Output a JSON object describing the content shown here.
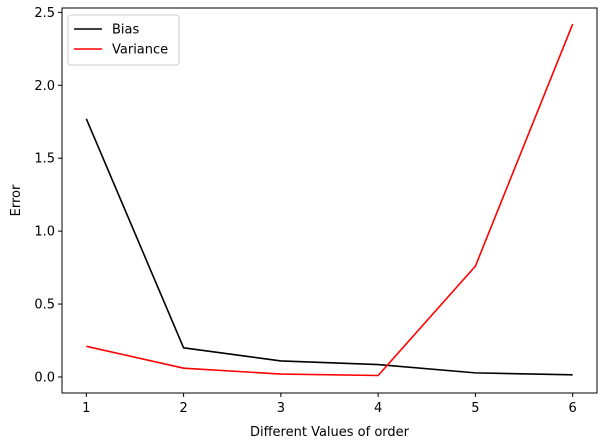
{
  "chart_data": {
    "type": "line",
    "x": [
      1,
      2,
      3,
      4,
      5,
      6
    ],
    "series": [
      {
        "name": "Bias",
        "color": "#000000",
        "values": [
          1.77,
          0.2,
          0.11,
          0.085,
          0.028,
          0.015
        ]
      },
      {
        "name": "Variance",
        "color": "#ff0000",
        "values": [
          0.21,
          0.06,
          0.02,
          0.01,
          0.76,
          2.42
        ]
      }
    ],
    "xlabel": "Different Values of order",
    "ylabel": "Error",
    "xlim": [
      0.75,
      6.25
    ],
    "ylim": [
      -0.11,
      2.53
    ],
    "xticks": [
      1,
      2,
      3,
      4,
      5,
      6
    ],
    "yticks": [
      0.0,
      0.5,
      1.0,
      1.5,
      2.0,
      2.5
    ],
    "ytick_labels": [
      "0.0",
      "0.5",
      "1.0",
      "1.5",
      "2.0",
      "2.5"
    ],
    "legend": "top-left",
    "grid": false
  }
}
